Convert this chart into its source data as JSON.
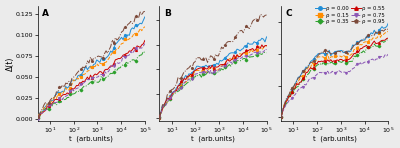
{
  "panel_labels": [
    "A",
    "B",
    "C"
  ],
  "xlabel": "t  (arb.units)",
  "ylabel": "Δ(t)",
  "rho_labels": [
    "ρ = 0.00",
    "ρ = 0.15",
    "ρ = 0.35",
    "ρ = 0.55",
    "ρ = 0.75",
    "ρ = 0.95"
  ],
  "colors": [
    "#1f8dd6",
    "#ff8c00",
    "#2ca02c",
    "#cc0000",
    "#8b57b5",
    "#7c4a3a"
  ],
  "linestyles": [
    "-",
    "--",
    "-.",
    "-",
    "--",
    "-."
  ],
  "markers": [
    "o",
    "s",
    "D",
    "^",
    "v",
    "p"
  ],
  "ylim_A": [
    -0.003,
    0.135
  ],
  "ylim_B": [
    -0.003,
    0.115
  ],
  "ylim_C": [
    -0.003,
    0.088
  ],
  "yticks_A": [
    0.0,
    0.025,
    0.05,
    0.075,
    0.1,
    0.125
  ],
  "yticks_B": [
    0.0,
    0.025,
    0.05,
    0.075,
    0.1
  ],
  "yticks_C": [
    0.0,
    0.025,
    0.05,
    0.075
  ],
  "background_color": "#ebebeb",
  "panel_A_maxvals": [
    0.118,
    0.11,
    0.078,
    0.092,
    0.088,
    0.128
  ],
  "panel_B_maxvals": [
    0.082,
    0.074,
    0.068,
    0.074,
    0.07,
    0.106
  ],
  "panel_C_maxvals": [
    0.072,
    0.067,
    0.06,
    0.062,
    0.049,
    0.07
  ],
  "panel_B_plateau": [
    0.052,
    0.048,
    0.044,
    0.05,
    0.046,
    0.06
  ],
  "panel_C_plateau": [
    0.05,
    0.047,
    0.042,
    0.044,
    0.035,
    0.05
  ]
}
